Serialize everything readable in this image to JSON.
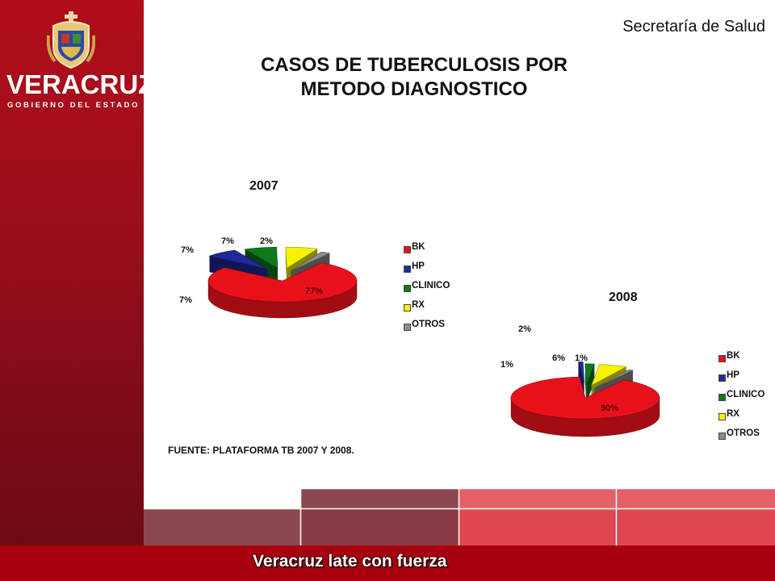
{
  "branding": {
    "name": "VERACRUZ",
    "subtitle": "GOBIERNO DEL ESTADO"
  },
  "header": {
    "org": "Secretaría de Salud"
  },
  "title_line1": "CASOS DE TUBERCULOSIS POR",
  "title_line2": "METODO DIAGNOSTICO",
  "source": "FUENTE: PLATAFORMA TB 2007 Y 2008.",
  "footer": {
    "tagline": "Veracruz late con fuerza"
  },
  "colors": {
    "BK": "#e8111b",
    "HP": "#1e2a9c",
    "CLINICO": "#0f7a1c",
    "RX": "#f4f400",
    "OTROS": "#8c8c8c",
    "sidebar": "#9a0e1c",
    "footer": "#a8000e"
  },
  "chart_data": [
    {
      "type": "pie",
      "title": "2007",
      "labels": [
        "BK",
        "HP",
        "CLINICO",
        "RX",
        "OTROS"
      ],
      "values": [
        77,
        7,
        7,
        7,
        2
      ],
      "value_labels": [
        "77%",
        "7%",
        "7%",
        "7%",
        "2%"
      ],
      "legend_position": "right"
    },
    {
      "type": "pie",
      "title": "2008",
      "labels": [
        "BK",
        "HP",
        "CLINICO",
        "RX",
        "OTROS"
      ],
      "values": [
        90,
        1,
        2,
        6,
        1
      ],
      "value_labels": [
        "90%",
        "1%",
        "2%",
        "6%",
        "1%"
      ],
      "legend_position": "right"
    }
  ]
}
